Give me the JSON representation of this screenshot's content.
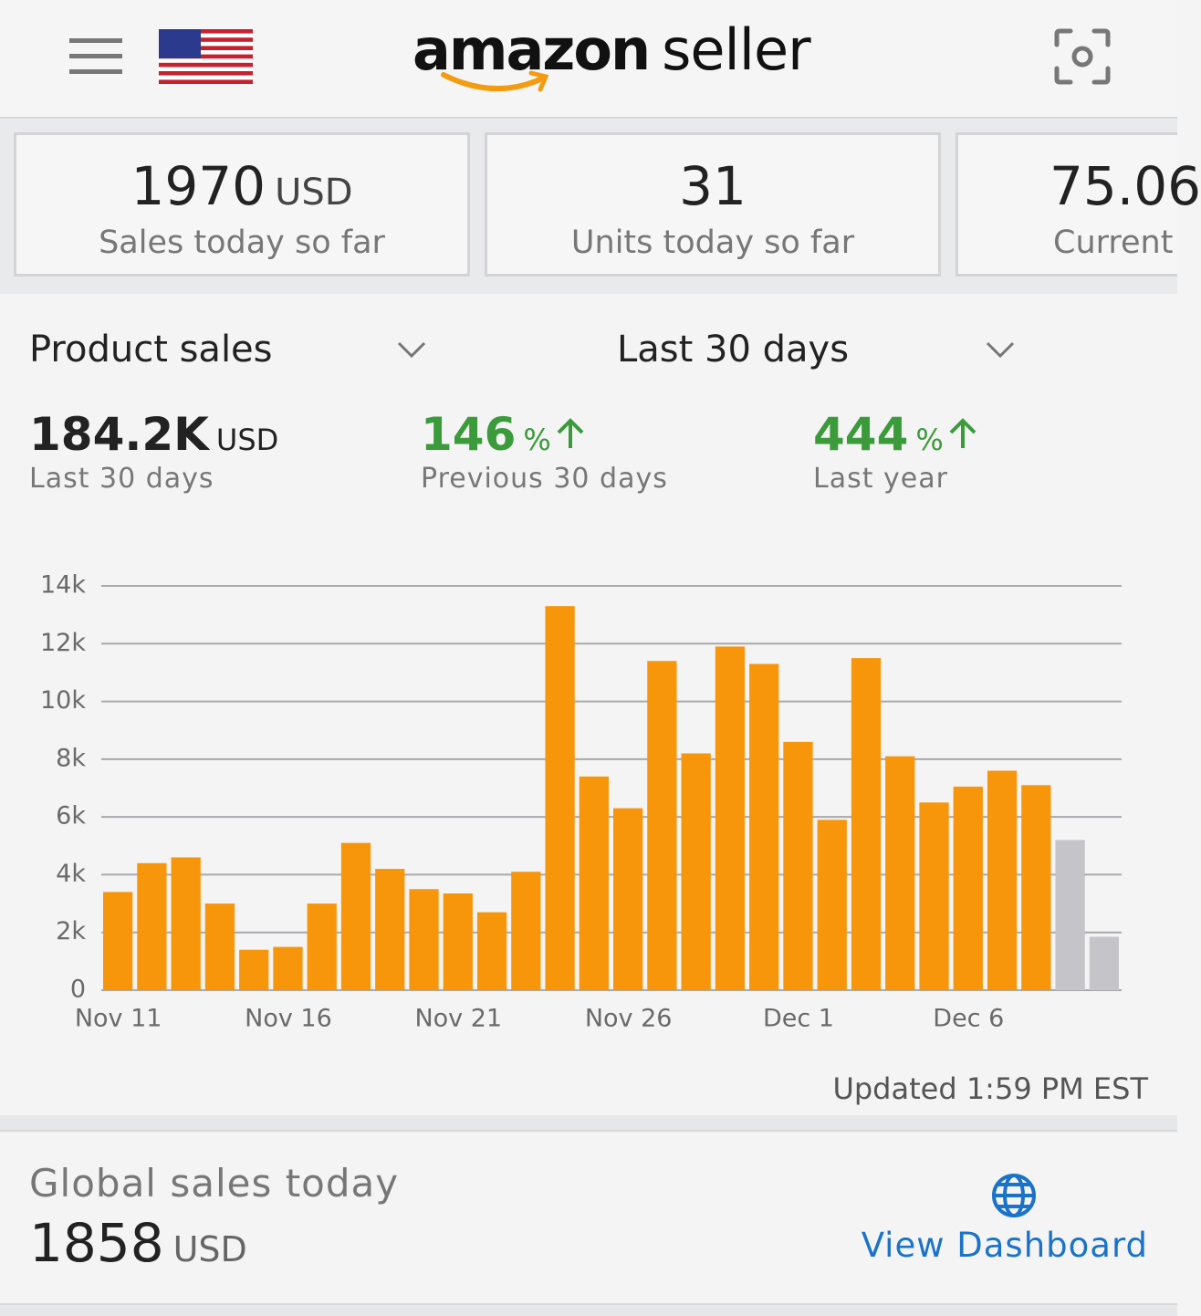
{
  "header": {
    "logo_bold": "amazon",
    "logo_light": "seller"
  },
  "cards": [
    {
      "value": "1970",
      "unit": "USD",
      "label": "Sales today so far"
    },
    {
      "value": "31",
      "label": "Units today so far"
    },
    {
      "value": "75.06",
      "label": "Current"
    }
  ],
  "filters": {
    "metric": "Product sales",
    "period": "Last 30 days"
  },
  "stats": [
    {
      "value": "184.2K",
      "unit": "USD",
      "label": "Last 30 days"
    },
    {
      "value": "146",
      "unit": "%",
      "label": "Previous 30 days"
    },
    {
      "value": "444",
      "unit": "%",
      "label": "Last year"
    }
  ],
  "chart_data": {
    "type": "bar",
    "categories": [
      "Nov 11",
      null,
      null,
      null,
      null,
      "Nov 16",
      null,
      null,
      null,
      null,
      "Nov 21",
      null,
      null,
      null,
      null,
      "Nov 26",
      null,
      null,
      null,
      null,
      "Dec 1",
      null,
      null,
      null,
      null,
      "Dec 6",
      null,
      null,
      null,
      null
    ],
    "values": [
      3400,
      4400,
      4600,
      3000,
      1400,
      1500,
      3000,
      5100,
      4200,
      3500,
      3350,
      2700,
      4100,
      13300,
      7400,
      6300,
      11400,
      8200,
      11900,
      11300,
      8600,
      5900,
      11500,
      8100,
      6500,
      7050,
      7600,
      7100,
      5200,
      1850
    ],
    "colors": [
      "#f7960a",
      "#f7960a",
      "#f7960a",
      "#f7960a",
      "#f7960a",
      "#f7960a",
      "#f7960a",
      "#f7960a",
      "#f7960a",
      "#f7960a",
      "#f7960a",
      "#f7960a",
      "#f7960a",
      "#f7960a",
      "#f7960a",
      "#f7960a",
      "#f7960a",
      "#f7960a",
      "#f7960a",
      "#f7960a",
      "#f7960a",
      "#f7960a",
      "#f7960a",
      "#f7960a",
      "#f7960a",
      "#f7960a",
      "#f7960a",
      "#f7960a",
      "#c4c4c9",
      "#c4c4c9"
    ],
    "ylim": [
      0,
      14000
    ],
    "yticks": [
      0,
      {
        "value": 2000,
        "label": "2k"
      },
      {
        "value": 4000,
        "label": "4k"
      },
      {
        "value": 6000,
        "label": "6k"
      },
      {
        "value": 8000,
        "label": "8k"
      },
      {
        "value": 10000,
        "label": "10k"
      },
      {
        "value": 12000,
        "label": "12k"
      },
      {
        "value": 14000,
        "label": "14k"
      }
    ],
    "grid": true
  },
  "updated": "Updated 1:59 PM EST",
  "global": {
    "title": "Global sales today",
    "value": "1858",
    "unit": "USD",
    "link": "View Dashboard"
  }
}
